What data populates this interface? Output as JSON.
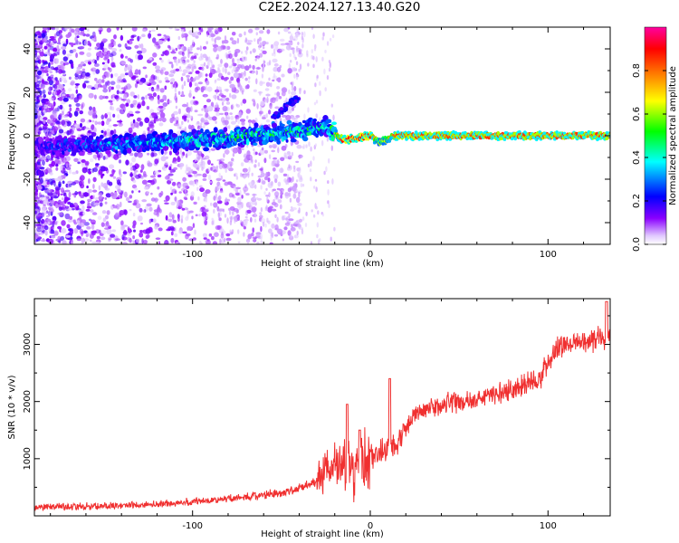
{
  "figure": {
    "title": "C2E2.2024.127.13.40.G20"
  },
  "chart_data": [
    {
      "type": "heatmap",
      "title": "C2E2.2024.127.13.40.G20",
      "xlabel": "Height of straight line (km)",
      "ylabel": "Frequency (Hz)",
      "xlim": [
        -189,
        135
      ],
      "ylim": [
        -50,
        50
      ],
      "xticks": [
        -100,
        0,
        100
      ],
      "yticks": [
        -40,
        -20,
        0,
        20,
        40
      ],
      "colorbar": {
        "label": "Normalized spectral amplitude",
        "range": [
          0.0,
          1.0
        ],
        "ticks": [
          0.0,
          0.2,
          0.4,
          0.6,
          0.8
        ],
        "colors": [
          "#ffffff",
          "#e6c8ff",
          "#7a00e6",
          "#0000ff",
          "#00ffff",
          "#00ff00",
          "#ffff00",
          "#ff8000",
          "#ff0000",
          "#ff0080"
        ]
      },
      "ridge": [
        {
          "x": -185,
          "freq": -5,
          "amp": 0.25
        },
        {
          "x": -150,
          "freq": -4,
          "amp": 0.35
        },
        {
          "x": -120,
          "freq": -3,
          "amp": 0.4
        },
        {
          "x": -90,
          "freq": -2,
          "amp": 0.45
        },
        {
          "x": -60,
          "freq": 1,
          "amp": 0.5
        },
        {
          "x": -40,
          "freq": 2,
          "amp": 0.5
        },
        {
          "x": -25,
          "freq": 4,
          "amp": 0.45
        },
        {
          "x": -15,
          "freq": -2,
          "amp": 0.9
        },
        {
          "x": 0,
          "freq": 0,
          "amp": 0.9
        },
        {
          "x": 5,
          "freq": -3,
          "amp": 0.6
        },
        {
          "x": 15,
          "freq": 0,
          "amp": 0.85
        },
        {
          "x": 60,
          "freq": 0,
          "amp": 0.85
        },
        {
          "x": 100,
          "freq": 0,
          "amp": 0.85
        },
        {
          "x": 135,
          "freq": 0,
          "amp": 0.85
        }
      ],
      "branch": [
        {
          "x": -55,
          "freq": 8
        },
        {
          "x": -45,
          "freq": 15
        },
        {
          "x": -40,
          "freq": 18
        }
      ]
    },
    {
      "type": "line",
      "xlabel": "Height of straight line (km)",
      "ylabel": "SNR (10 * v/v)",
      "xlim": [
        -189,
        135
      ],
      "ylim": [
        0,
        3800
      ],
      "xticks": [
        -100,
        0,
        100
      ],
      "yticks": [
        1000,
        2000,
        3000
      ],
      "color": "#f03030",
      "trend": [
        {
          "x": -189,
          "y": 150
        },
        {
          "x": -150,
          "y": 170
        },
        {
          "x": -120,
          "y": 200
        },
        {
          "x": -90,
          "y": 270
        },
        {
          "x": -70,
          "y": 330
        },
        {
          "x": -50,
          "y": 400
        },
        {
          "x": -40,
          "y": 480
        },
        {
          "x": -30,
          "y": 600
        },
        {
          "x": -25,
          "y": 800
        },
        {
          "x": -20,
          "y": 1000
        },
        {
          "x": -15,
          "y": 850
        },
        {
          "x": -10,
          "y": 700
        },
        {
          "x": -5,
          "y": 900
        },
        {
          "x": 0,
          "y": 1050
        },
        {
          "x": 8,
          "y": 1150
        },
        {
          "x": 15,
          "y": 1250
        },
        {
          "x": 20,
          "y": 1550
        },
        {
          "x": 25,
          "y": 1750
        },
        {
          "x": 30,
          "y": 1850
        },
        {
          "x": 40,
          "y": 1950
        },
        {
          "x": 60,
          "y": 2050
        },
        {
          "x": 80,
          "y": 2200
        },
        {
          "x": 95,
          "y": 2400
        },
        {
          "x": 100,
          "y": 2700
        },
        {
          "x": 105,
          "y": 2950
        },
        {
          "x": 120,
          "y": 3050
        },
        {
          "x": 135,
          "y": 3150
        }
      ],
      "spikes": [
        {
          "x": -13,
          "y": 1950
        },
        {
          "x": -6,
          "y": 1500
        },
        {
          "x": 11,
          "y": 2400
        },
        {
          "x": 133,
          "y": 3750
        }
      ]
    }
  ]
}
